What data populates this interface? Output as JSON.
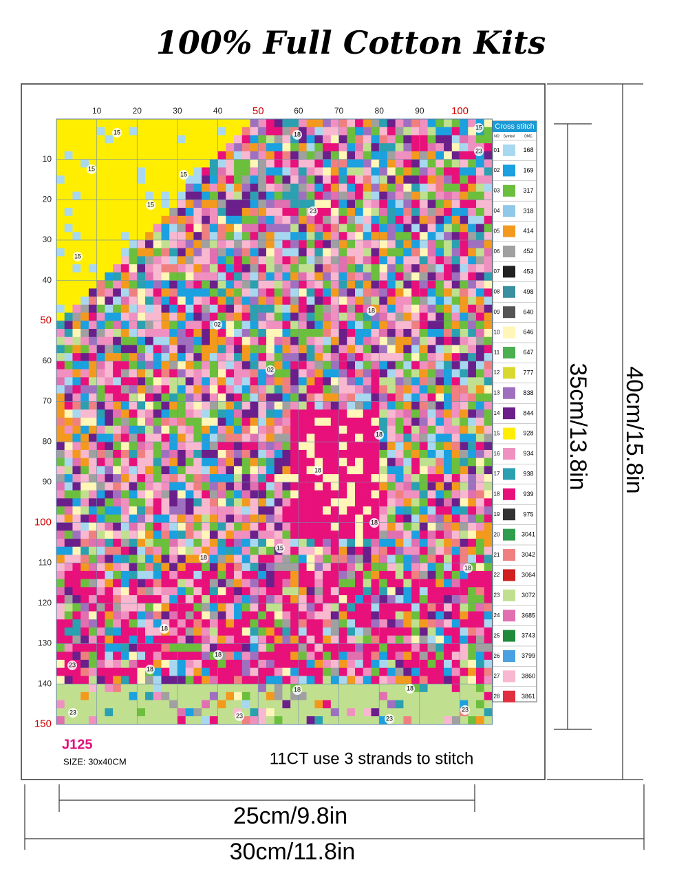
{
  "header": {
    "title": "100% Full Cotton Kits"
  },
  "pattern": {
    "column_labels": [
      10,
      20,
      30,
      40,
      50,
      60,
      70,
      80,
      90,
      100
    ],
    "row_labels": [
      10,
      20,
      30,
      40,
      50,
      60,
      70,
      80,
      90,
      100,
      110,
      120,
      130,
      140,
      150
    ],
    "region_labels": [
      "15",
      "15",
      "15",
      "15",
      "15",
      "15",
      "23",
      "18",
      "23",
      "18",
      "02",
      "02",
      "18",
      "18",
      "18",
      "15",
      "18",
      "18",
      "18",
      "18",
      "18",
      "23",
      "18",
      "18",
      "23",
      "23",
      "23",
      "23"
    ],
    "code": "J125",
    "size": "SIZE: 30x40CM",
    "instruction": "11CT use 3 strands to stitch"
  },
  "legend": {
    "title": "Cross stitch",
    "headers": [
      "NO",
      "Symbol",
      "DMC"
    ],
    "rows": [
      {
        "no": "01",
        "dmc": 168,
        "color": "#a8d8f0"
      },
      {
        "no": "02",
        "dmc": 169,
        "color": "#1ba0e0"
      },
      {
        "no": "03",
        "dmc": 317,
        "color": "#6cbf3c"
      },
      {
        "no": "04",
        "dmc": 318,
        "color": "#8fc8e8"
      },
      {
        "no": "05",
        "dmc": 414,
        "color": "#f39a1e"
      },
      {
        "no": "06",
        "dmc": 452,
        "color": "#a0a0a0"
      },
      {
        "no": "07",
        "dmc": 453,
        "color": "#222222"
      },
      {
        "no": "08",
        "dmc": 498,
        "color": "#3a8fa0"
      },
      {
        "no": "09",
        "dmc": 640,
        "color": "#555555"
      },
      {
        "no": "10",
        "dmc": 646,
        "color": "#fff6b8"
      },
      {
        "no": "11",
        "dmc": 647,
        "color": "#4caf50"
      },
      {
        "no": "12",
        "dmc": 777,
        "color": "#d8d830"
      },
      {
        "no": "13",
        "dmc": 838,
        "color": "#a070c0"
      },
      {
        "no": "14",
        "dmc": 844,
        "color": "#6a1f8a"
      },
      {
        "no": "15",
        "dmc": 928,
        "color": "#ffee00"
      },
      {
        "no": "16",
        "dmc": 934,
        "color": "#f090c0"
      },
      {
        "no": "17",
        "dmc": 938,
        "color": "#2aa0b0"
      },
      {
        "no": "18",
        "dmc": 939,
        "color": "#e8107a"
      },
      {
        "no": "19",
        "dmc": 975,
        "color": "#333333"
      },
      {
        "no": "20",
        "dmc": 3041,
        "color": "#2e9e4e"
      },
      {
        "no": "21",
        "dmc": 3042,
        "color": "#f08080"
      },
      {
        "no": "22",
        "dmc": 3064,
        "color": "#d02020"
      },
      {
        "no": "23",
        "dmc": 3072,
        "color": "#c0e090"
      },
      {
        "no": "24",
        "dmc": 3685,
        "color": "#e070b0"
      },
      {
        "no": "25",
        "dmc": 3743,
        "color": "#1e8a3a"
      },
      {
        "no": "26",
        "dmc": 3799,
        "color": "#4aa0e0"
      },
      {
        "no": "27",
        "dmc": 3860,
        "color": "#f8b8d0"
      },
      {
        "no": "28",
        "dmc": 3861,
        "color": "#e03040"
      }
    ]
  },
  "dimensions": {
    "inner_height": "35cm/13.8in",
    "outer_height": "40cm/15.8in",
    "inner_width": "25cm/9.8in",
    "outer_width": "30cm/11.8in"
  }
}
